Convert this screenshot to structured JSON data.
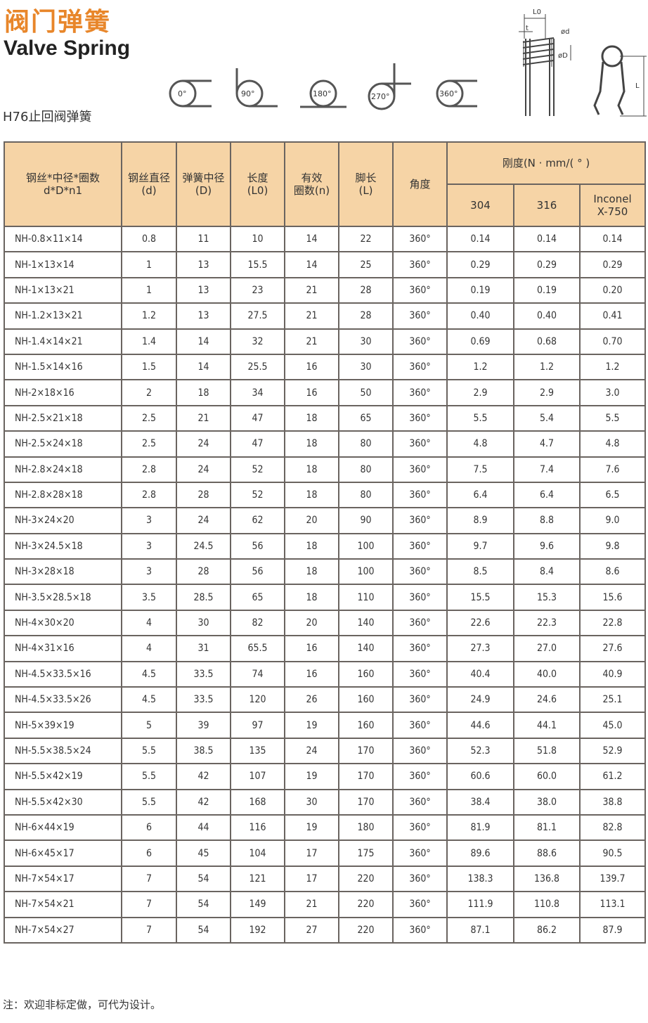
{
  "title_cn": "阀门弹簧",
  "title_en": "Valve Spring",
  "subtitle": "H76止回阀弹簧",
  "angle_diagrams": [
    "0°",
    "90°",
    "180°",
    "270°",
    "360°"
  ],
  "spring_labels": {
    "l0": "L0",
    "t": "t",
    "d": "ød",
    "D": "øD",
    "L": "L"
  },
  "table": {
    "headers": {
      "model": [
        "钢丝*中径*圈数",
        "d*D*n1"
      ],
      "d": [
        "钢丝直径",
        "(d)"
      ],
      "D": [
        "弹簧中径",
        "(D)"
      ],
      "l0": [
        "长度",
        "(L0)"
      ],
      "n": [
        "有效",
        "圈数(n)"
      ],
      "L": [
        "脚长",
        "(L)"
      ],
      "angle": "角度",
      "stiffness": "刚度(N · mm/( ° )",
      "m304": "304",
      "m316": "316",
      "inconel": [
        "Inconel",
        "X-750"
      ]
    },
    "rows": [
      [
        "NH-0.8×11×14",
        "0.8",
        "11",
        "10",
        "14",
        "22",
        "360°",
        "0.14",
        "0.14",
        "0.14"
      ],
      [
        "NH-1×13×14",
        "1",
        "13",
        "15.5",
        "14",
        "25",
        "360°",
        "0.29",
        "0.29",
        "0.29"
      ],
      [
        "NH-1×13×21",
        "1",
        "13",
        "23",
        "21",
        "28",
        "360°",
        "0.19",
        "0.19",
        "0.20"
      ],
      [
        "NH-1.2×13×21",
        "1.2",
        "13",
        "27.5",
        "21",
        "28",
        "360°",
        "0.40",
        "0.40",
        "0.41"
      ],
      [
        "NH-1.4×14×21",
        "1.4",
        "14",
        "32",
        "21",
        "30",
        "360°",
        "0.69",
        "0.68",
        "0.70"
      ],
      [
        "NH-1.5×14×16",
        "1.5",
        "14",
        "25.5",
        "16",
        "30",
        "360°",
        "1.2",
        "1.2",
        "1.2"
      ],
      [
        "NH-2×18×16",
        "2",
        "18",
        "34",
        "16",
        "50",
        "360°",
        "2.9",
        "2.9",
        "3.0"
      ],
      [
        "NH-2.5×21×18",
        "2.5",
        "21",
        "47",
        "18",
        "65",
        "360°",
        "5.5",
        "5.4",
        "5.5"
      ],
      [
        "NH-2.5×24×18",
        "2.5",
        "24",
        "47",
        "18",
        "80",
        "360°",
        "4.8",
        "4.7",
        "4.8"
      ],
      [
        "NH-2.8×24×18",
        "2.8",
        "24",
        "52",
        "18",
        "80",
        "360°",
        "7.5",
        "7.4",
        "7.6"
      ],
      [
        "NH-2.8×28×18",
        "2.8",
        "28",
        "52",
        "18",
        "80",
        "360°",
        "6.4",
        "6.4",
        "6.5"
      ],
      [
        "NH-3×24×20",
        "3",
        "24",
        "62",
        "20",
        "90",
        "360°",
        "8.9",
        "8.8",
        "9.0"
      ],
      [
        "NH-3×24.5×18",
        "3",
        "24.5",
        "56",
        "18",
        "100",
        "360°",
        "9.7",
        "9.6",
        "9.8"
      ],
      [
        "NH-3×28×18",
        "3",
        "28",
        "56",
        "18",
        "100",
        "360°",
        "8.5",
        "8.4",
        "8.6"
      ],
      [
        "NH-3.5×28.5×18",
        "3.5",
        "28.5",
        "65",
        "18",
        "110",
        "360°",
        "15.5",
        "15.3",
        "15.6"
      ],
      [
        "NH-4×30×20",
        "4",
        "30",
        "82",
        "20",
        "140",
        "360°",
        "22.6",
        "22.3",
        "22.8"
      ],
      [
        "NH-4×31×16",
        "4",
        "31",
        "65.5",
        "16",
        "140",
        "360°",
        "27.3",
        "27.0",
        "27.6"
      ],
      [
        "NH-4.5×33.5×16",
        "4.5",
        "33.5",
        "74",
        "16",
        "160",
        "360°",
        "40.4",
        "40.0",
        "40.9"
      ],
      [
        "NH-4.5×33.5×26",
        "4.5",
        "33.5",
        "120",
        "26",
        "160",
        "360°",
        "24.9",
        "24.6",
        "25.1"
      ],
      [
        "NH-5×39×19",
        "5",
        "39",
        "97",
        "19",
        "160",
        "360°",
        "44.6",
        "44.1",
        "45.0"
      ],
      [
        "NH-5.5×38.5×24",
        "5.5",
        "38.5",
        "135",
        "24",
        "170",
        "360°",
        "52.3",
        "51.8",
        "52.9"
      ],
      [
        "NH-5.5×42×19",
        "5.5",
        "42",
        "107",
        "19",
        "170",
        "360°",
        "60.6",
        "60.0",
        "61.2"
      ],
      [
        "NH-5.5×42×30",
        "5.5",
        "42",
        "168",
        "30",
        "170",
        "360°",
        "38.4",
        "38.0",
        "38.8"
      ],
      [
        "NH-6×44×19",
        "6",
        "44",
        "116",
        "19",
        "180",
        "360°",
        "81.9",
        "81.1",
        "82.8"
      ],
      [
        "NH-6×45×17",
        "6",
        "45",
        "104",
        "17",
        "175",
        "360°",
        "89.6",
        "88.6",
        "90.5"
      ],
      [
        "NH-7×54×17",
        "7",
        "54",
        "121",
        "17",
        "220",
        "360°",
        "138.3",
        "136.8",
        "139.7"
      ],
      [
        "NH-7×54×21",
        "7",
        "54",
        "149",
        "21",
        "220",
        "360°",
        "111.9",
        "110.8",
        "113.1"
      ],
      [
        "NH-7×54×27",
        "7",
        "54",
        "192",
        "27",
        "220",
        "360°",
        "87.1",
        "86.2",
        "87.9"
      ]
    ]
  },
  "note": "注：欢迎非标定做，可代为设计。",
  "colors": {
    "title": "#e8862a",
    "header_bg": "#f6d4a6",
    "border": "#6a6460"
  }
}
